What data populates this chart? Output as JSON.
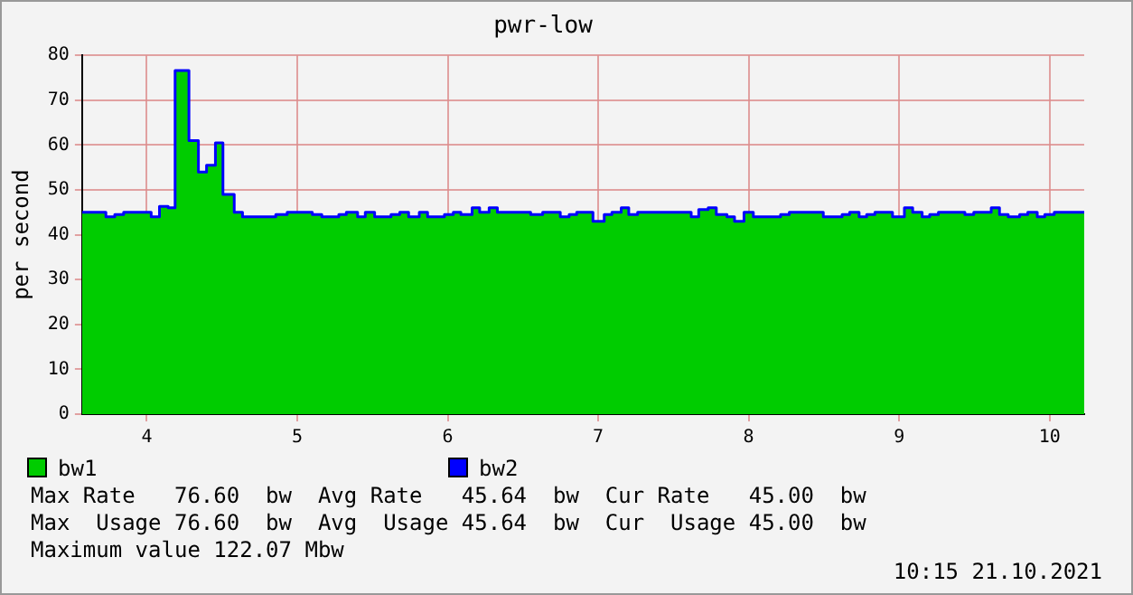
{
  "chart_data": {
    "type": "step",
    "title": "pwr-low",
    "ylabel": "per second",
    "xlim": [
      3.57,
      10.23
    ],
    "xticks": [
      4,
      5,
      6,
      7,
      8,
      9,
      10
    ],
    "ylim": [
      0,
      80
    ],
    "yticks": [
      0,
      10,
      20,
      30,
      40,
      50,
      60,
      70,
      80
    ],
    "x": [
      3.57,
      3.728,
      3.787,
      3.846,
      4.029,
      4.084,
      4.142,
      4.188,
      4.28,
      4.343,
      4.397,
      4.456,
      4.506,
      4.581,
      4.636,
      4.857,
      4.933,
      5.1,
      5.163,
      5.276,
      5.326,
      5.401,
      5.452,
      5.514,
      5.623,
      5.681,
      5.74,
      5.811,
      5.866,
      5.978,
      6.037,
      6.087,
      6.162,
      6.212,
      6.275,
      6.33,
      6.551,
      6.631,
      6.748,
      6.807,
      6.857,
      6.965,
      7.04,
      7.091,
      7.153,
      7.203,
      7.262,
      7.618,
      7.668,
      7.731,
      7.785,
      7.856,
      7.906,
      7.969,
      8.031,
      8.212,
      8.27,
      8.496,
      8.621,
      8.671,
      8.734,
      8.784,
      8.839,
      8.956,
      9.035,
      9.09,
      9.153,
      9.203,
      9.261,
      9.437,
      9.496,
      9.612,
      9.667,
      9.725,
      9.801,
      9.855,
      9.918,
      9.968,
      10.031,
      10.23
    ],
    "series": [
      {
        "name": "bw1",
        "type": "area",
        "color": "#00cc00",
        "values": [
          45,
          44,
          44.5,
          45,
          44,
          46.3,
          46,
          76.6,
          61,
          54,
          55.5,
          60.5,
          49,
          45,
          44,
          44.5,
          45,
          44.5,
          44,
          44.5,
          45,
          44,
          45,
          44,
          44.5,
          45,
          44,
          45,
          44,
          44.5,
          45,
          44.5,
          46,
          45,
          46,
          45,
          44.5,
          45,
          44,
          44.5,
          45,
          43,
          44.5,
          45,
          46,
          44.5,
          45,
          44,
          45.6,
          46,
          44.5,
          44,
          43,
          45,
          44,
          44.5,
          45,
          44,
          44.5,
          45,
          44,
          44.5,
          45,
          44,
          46,
          45,
          44,
          44.5,
          45,
          44.5,
          45,
          46,
          44.5,
          44,
          44.5,
          45,
          44,
          44.5,
          45,
          45
        ]
      },
      {
        "name": "bw2",
        "type": "step",
        "color": "#0000ff",
        "values": [
          45,
          44,
          44.5,
          45,
          44,
          46.3,
          46,
          76.6,
          61,
          54,
          55.5,
          60.5,
          49,
          45,
          44,
          44.5,
          45,
          44.5,
          44,
          44.5,
          45,
          44,
          45,
          44,
          44.5,
          45,
          44,
          45,
          44,
          44.5,
          45,
          44.5,
          46,
          45,
          46,
          45,
          44.5,
          45,
          44,
          44.5,
          45,
          43,
          44.5,
          45,
          46,
          44.5,
          45,
          44,
          45.6,
          46,
          44.5,
          44,
          43,
          45,
          44,
          44.5,
          45,
          44,
          44.5,
          45,
          44,
          44.5,
          45,
          44,
          46,
          45,
          44,
          44.5,
          45,
          44.5,
          45,
          46,
          44.5,
          44,
          44.5,
          45,
          44,
          44.5,
          45,
          45
        ]
      }
    ],
    "grid": true,
    "legend": "bottom",
    "line_style": "solid",
    "marker": "none",
    "annotations": [
      "Max Rate   76.60  bw  Avg Rate   45.64  bw  Cur Rate   45.00  bw",
      "Max  Usage 76.60  bw  Avg  Usage 45.64  bw  Cur  Usage 45.00  bw",
      "Maximum value 122.07 Mbw",
      "10:15 21.10.2021"
    ]
  }
}
